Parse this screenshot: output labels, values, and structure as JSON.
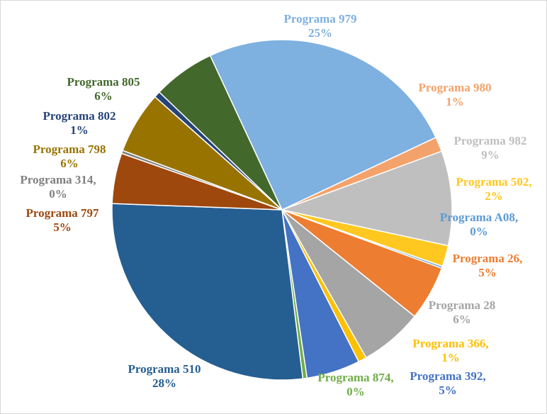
{
  "chart_data": {
    "type": "pie",
    "categories": [
      "Programa 979",
      "Programa 980",
      "Programa 982",
      "Programa 502,",
      "Programa A08,",
      "Programa 26,",
      "Programa 28",
      "Programa 366,",
      "Programa 392,",
      "Programa 874,",
      "Programa 510",
      "Programa 797",
      "Programa 314,",
      "Programa 798",
      "Programa 802",
      "Programa 805"
    ],
    "values": [
      25.0,
      1.4,
      9.0,
      2.0,
      0.2,
      5.2,
      6.0,
      0.8,
      5.1,
      0.4,
      27.6,
      4.8,
      0.3,
      5.9,
      0.6,
      5.9
    ],
    "value_labels": [
      "25%",
      "1%",
      "9%",
      "2%",
      "0%",
      "5%",
      "6%",
      "1%",
      "5%",
      "0%",
      "28%",
      "5%",
      "0%",
      "6%",
      "1%",
      "6%"
    ],
    "colors": [
      "#7eb0e0",
      "#f4a26b",
      "#bfbfbf",
      "#ffc820",
      "#5b9bd5",
      "#ed7d31",
      "#a5a5a5",
      "#ffc000",
      "#4472c4",
      "#70ad47",
      "#255e91",
      "#9e480e",
      "#7f7f7f",
      "#997300",
      "#264478",
      "#43682b"
    ]
  }
}
